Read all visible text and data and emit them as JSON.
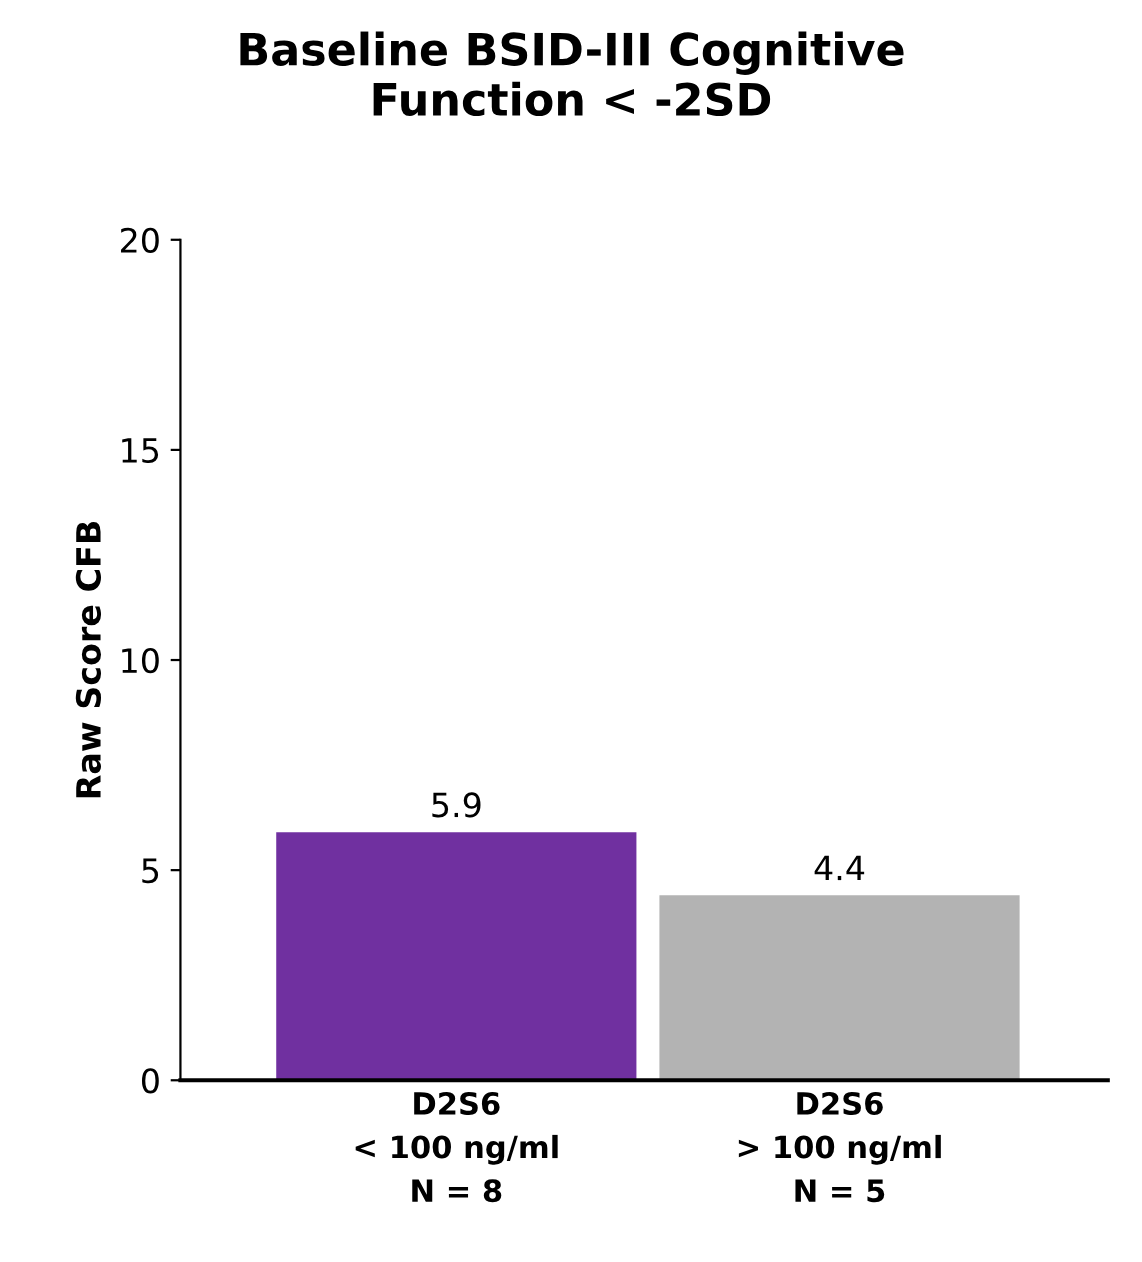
{
  "chart_data": {
    "type": "bar",
    "title": "Baseline BSID-III Cognitive\nFunction < -2SD",
    "ylabel": "Raw Score CFB",
    "categories": [
      "D2S6\n< 100 ng/ml\nN = 8",
      "D2S6\n> 100 ng/ml\nN = 5"
    ],
    "values": [
      5.9,
      4.4
    ],
    "colors": [
      "#7030a0",
      "#b3b3b3"
    ],
    "ylim": [
      0,
      20
    ],
    "yticks": [
      0,
      5,
      10,
      15,
      20
    ],
    "grid": false,
    "data_labels": true
  }
}
